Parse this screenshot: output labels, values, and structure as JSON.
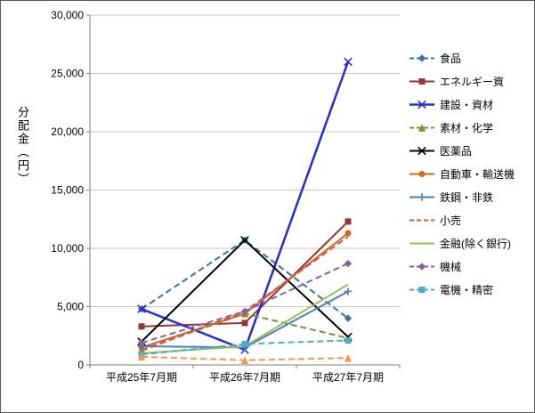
{
  "chart_data": {
    "type": "line",
    "title": "",
    "xlabel": "",
    "ylabel": "分配金（円）",
    "ylim": [
      0,
      30000
    ],
    "ytick_step": 5000,
    "yticks": [
      "0",
      "5,000",
      "10,000",
      "15,000",
      "20,000",
      "25,000",
      "30,000"
    ],
    "grid": true,
    "legend_position": "right",
    "categories": [
      "平成25年7月期",
      "平成26年7月期",
      "平成27年7月期"
    ],
    "series": [
      {
        "name": "食品",
        "color": "#41729F",
        "dash": true,
        "marker": "diamond",
        "values": [
          4800,
          10700,
          4000
        ]
      },
      {
        "name": "エネルギー資",
        "color": "#953735",
        "dash": false,
        "marker": "square",
        "values": [
          3300,
          3600,
          12300
        ]
      },
      {
        "name": "建設・資材",
        "color": "#2A2AD5",
        "dash": false,
        "marker": "x",
        "values": [
          4800,
          1300,
          26000
        ],
        "width": 2.5
      },
      {
        "name": "素材・化学",
        "color": "#77933C",
        "dash": true,
        "marker": "triangle",
        "values": [
          1300,
          4400,
          2300
        ]
      },
      {
        "name": "医薬品",
        "color": "#000000",
        "dash": false,
        "marker": "x",
        "values": [
          2000,
          10700,
          2400
        ]
      },
      {
        "name": "自動車・輸送機",
        "color": "#CC6A1F",
        "dash": false,
        "marker": "circle",
        "values": [
          1500,
          4400,
          11300
        ]
      },
      {
        "name": "鉄鋼・非鉄",
        "color": "#4A7EBB",
        "dash": false,
        "marker": "plus",
        "values": [
          1600,
          1500,
          6300
        ]
      },
      {
        "name": "小売",
        "color": "#D9534F",
        "dash": true,
        "marker": "none",
        "values": [
          1200,
          4600,
          11000
        ]
      },
      {
        "name": "金融(除く銀行)",
        "color": "#9BBB59",
        "dash": false,
        "marker": "none",
        "values": [
          1000,
          1600,
          6900
        ]
      },
      {
        "name": "機械",
        "color": "#8064A2",
        "dash": true,
        "marker": "diamond",
        "values": [
          1900,
          4600,
          8700
        ]
      },
      {
        "name": "電機・精密",
        "color": "#4BACC6",
        "dash": true,
        "marker": "square",
        "values": [
          900,
          1800,
          2100
        ]
      },
      {
        "name": "",
        "color": "#F79646",
        "dash": true,
        "marker": "triangle",
        "values": [
          700,
          400,
          600
        ],
        "legend_visible": false
      }
    ]
  }
}
